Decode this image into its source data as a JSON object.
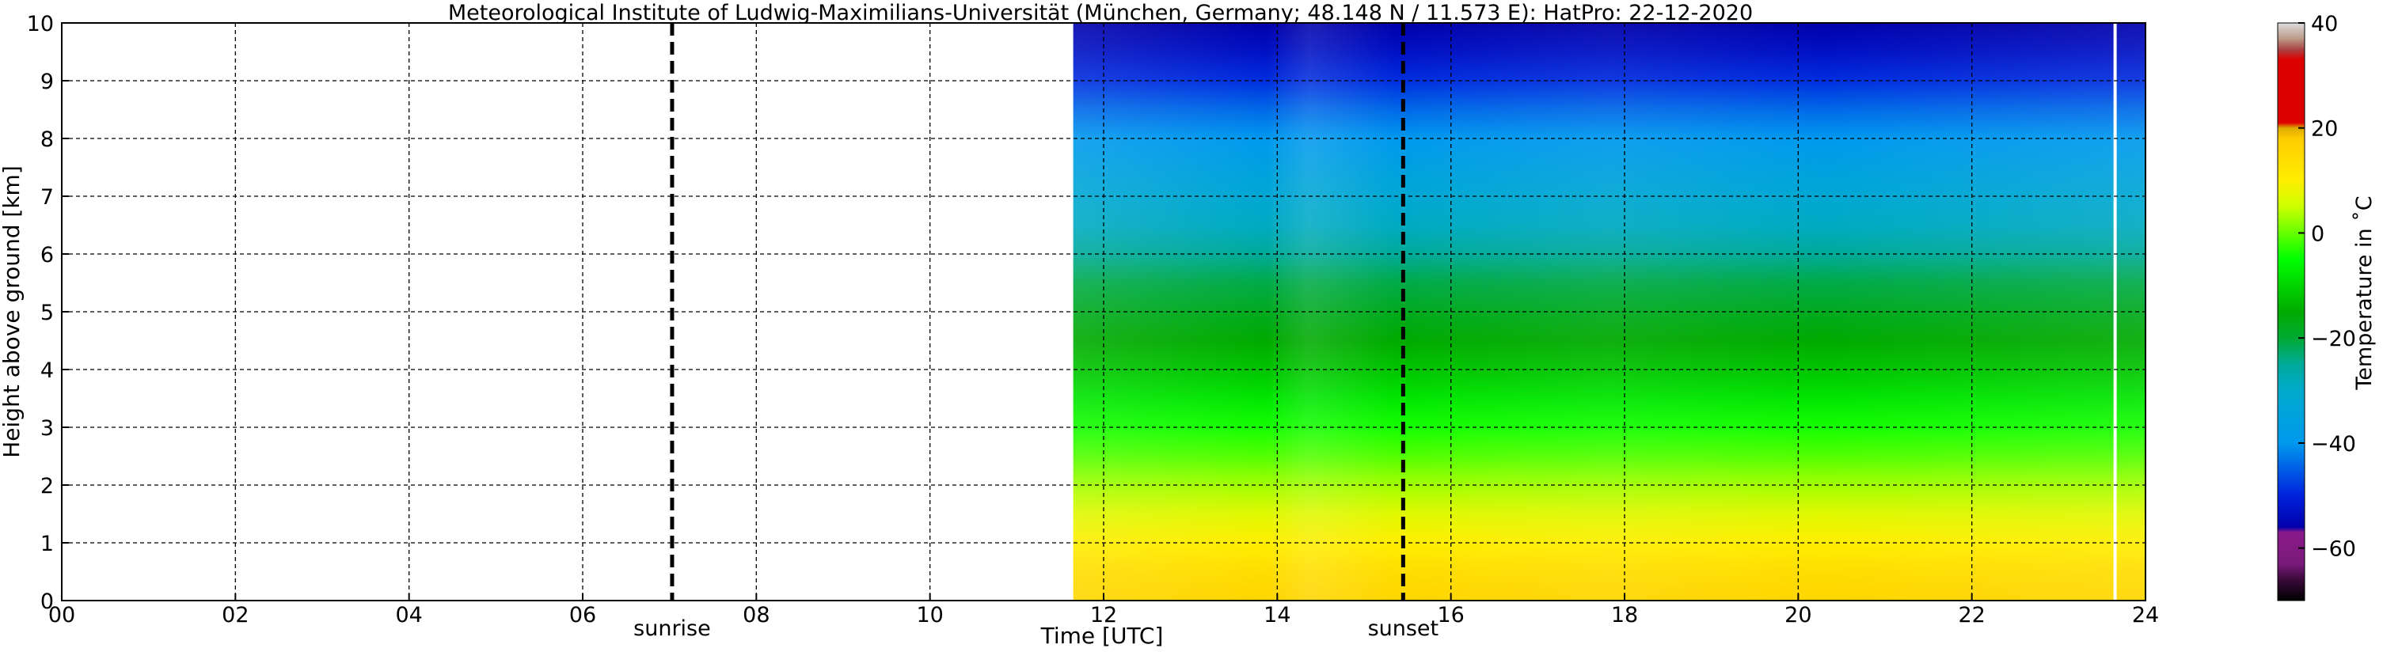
{
  "chart_data": {
    "type": "heatmap",
    "title": "Meteorological Institute of Ludwig-Maximilians-Universität (München, Germany; 48.148 N / 11.573 E):    HatPro: 22-12-2020",
    "xlabel": "Time [UTC]",
    "ylabel": "Height above ground [km]",
    "xlim": [
      0,
      24
    ],
    "ylim": [
      0,
      10
    ],
    "grid": true,
    "x_ticks": [
      {
        "value": 0,
        "label": "00"
      },
      {
        "value": 2,
        "label": "02"
      },
      {
        "value": 4,
        "label": "04"
      },
      {
        "value": 6,
        "label": "06"
      },
      {
        "value": 8,
        "label": "08"
      },
      {
        "value": 10,
        "label": "10"
      },
      {
        "value": 12,
        "label": "12"
      },
      {
        "value": 14,
        "label": "14"
      },
      {
        "value": 16,
        "label": "16"
      },
      {
        "value": 18,
        "label": "18"
      },
      {
        "value": 20,
        "label": "20"
      },
      {
        "value": 22,
        "label": "22"
      },
      {
        "value": 24,
        "label": "24"
      }
    ],
    "y_ticks": [
      {
        "value": 0,
        "label": "0"
      },
      {
        "value": 1,
        "label": "1"
      },
      {
        "value": 2,
        "label": "2"
      },
      {
        "value": 3,
        "label": "3"
      },
      {
        "value": 4,
        "label": "4"
      },
      {
        "value": 5,
        "label": "5"
      },
      {
        "value": 6,
        "label": "6"
      },
      {
        "value": 7,
        "label": "7"
      },
      {
        "value": 8,
        "label": "8"
      },
      {
        "value": 9,
        "label": "9"
      },
      {
        "value": 10,
        "label": "10"
      }
    ],
    "data_time_range": [
      11.65,
      24.0
    ],
    "data_gap_time": 23.65,
    "annotations": [
      {
        "label": "sunrise",
        "time": 7.03
      },
      {
        "label": "sunset",
        "time": 15.45
      }
    ],
    "temperature_profile": [
      {
        "height": 0.0,
        "temp": 16
      },
      {
        "height": 0.5,
        "temp": 14
      },
      {
        "height": 1.0,
        "temp": 10
      },
      {
        "height": 1.5,
        "temp": 7
      },
      {
        "height": 2.0,
        "temp": 3
      },
      {
        "height": 2.5,
        "temp": -1
      },
      {
        "height": 3.0,
        "temp": -4
      },
      {
        "height": 3.5,
        "temp": -8
      },
      {
        "height": 4.0,
        "temp": -12
      },
      {
        "height": 4.5,
        "temp": -15
      },
      {
        "height": 5.0,
        "temp": -18
      },
      {
        "height": 5.5,
        "temp": -21
      },
      {
        "height": 6.0,
        "temp": -25
      },
      {
        "height": 6.5,
        "temp": -29
      },
      {
        "height": 7.0,
        "temp": -32
      },
      {
        "height": 7.5,
        "temp": -36
      },
      {
        "height": 8.0,
        "temp": -40
      },
      {
        "height": 8.5,
        "temp": -44
      },
      {
        "height": 9.0,
        "temp": -49
      },
      {
        "height": 9.5,
        "temp": -53
      },
      {
        "height": 10.0,
        "temp": -56
      }
    ],
    "colorbar": {
      "label": "Temperature in ˚C",
      "range": [
        -70,
        40
      ],
      "ticks": [
        {
          "value": 40,
          "label": "40"
        },
        {
          "value": 20,
          "label": "20"
        },
        {
          "value": 0,
          "label": "0"
        },
        {
          "value": -20,
          "label": "−20"
        },
        {
          "value": -40,
          "label": "−40"
        },
        {
          "value": -60,
          "label": "−60"
        }
      ],
      "stops": [
        {
          "value": -70,
          "color": "#000000"
        },
        {
          "value": -66,
          "color": "#3a0a3a"
        },
        {
          "value": -63,
          "color": "#7a1a7a"
        },
        {
          "value": -57,
          "color": "#8a1a8a"
        },
        {
          "value": -56,
          "color": "#0000aa"
        },
        {
          "value": -50,
          "color": "#0022dd"
        },
        {
          "value": -40,
          "color": "#0099ee"
        },
        {
          "value": -30,
          "color": "#00aacc"
        },
        {
          "value": -25,
          "color": "#00aa99"
        },
        {
          "value": -20,
          "color": "#00aa33"
        },
        {
          "value": -15,
          "color": "#00aa00"
        },
        {
          "value": -5,
          "color": "#00ff00"
        },
        {
          "value": 0,
          "color": "#66ff00"
        },
        {
          "value": 5,
          "color": "#ccff00"
        },
        {
          "value": 10,
          "color": "#ffee00"
        },
        {
          "value": 18,
          "color": "#ffcc00"
        },
        {
          "value": 20,
          "color": "#ddaa00"
        },
        {
          "value": 21,
          "color": "#dd0000"
        },
        {
          "value": 33,
          "color": "#dd0000"
        },
        {
          "value": 35,
          "color": "#aa4444"
        },
        {
          "value": 37,
          "color": "#bb9988"
        },
        {
          "value": 40,
          "color": "#dddddd"
        }
      ]
    }
  }
}
